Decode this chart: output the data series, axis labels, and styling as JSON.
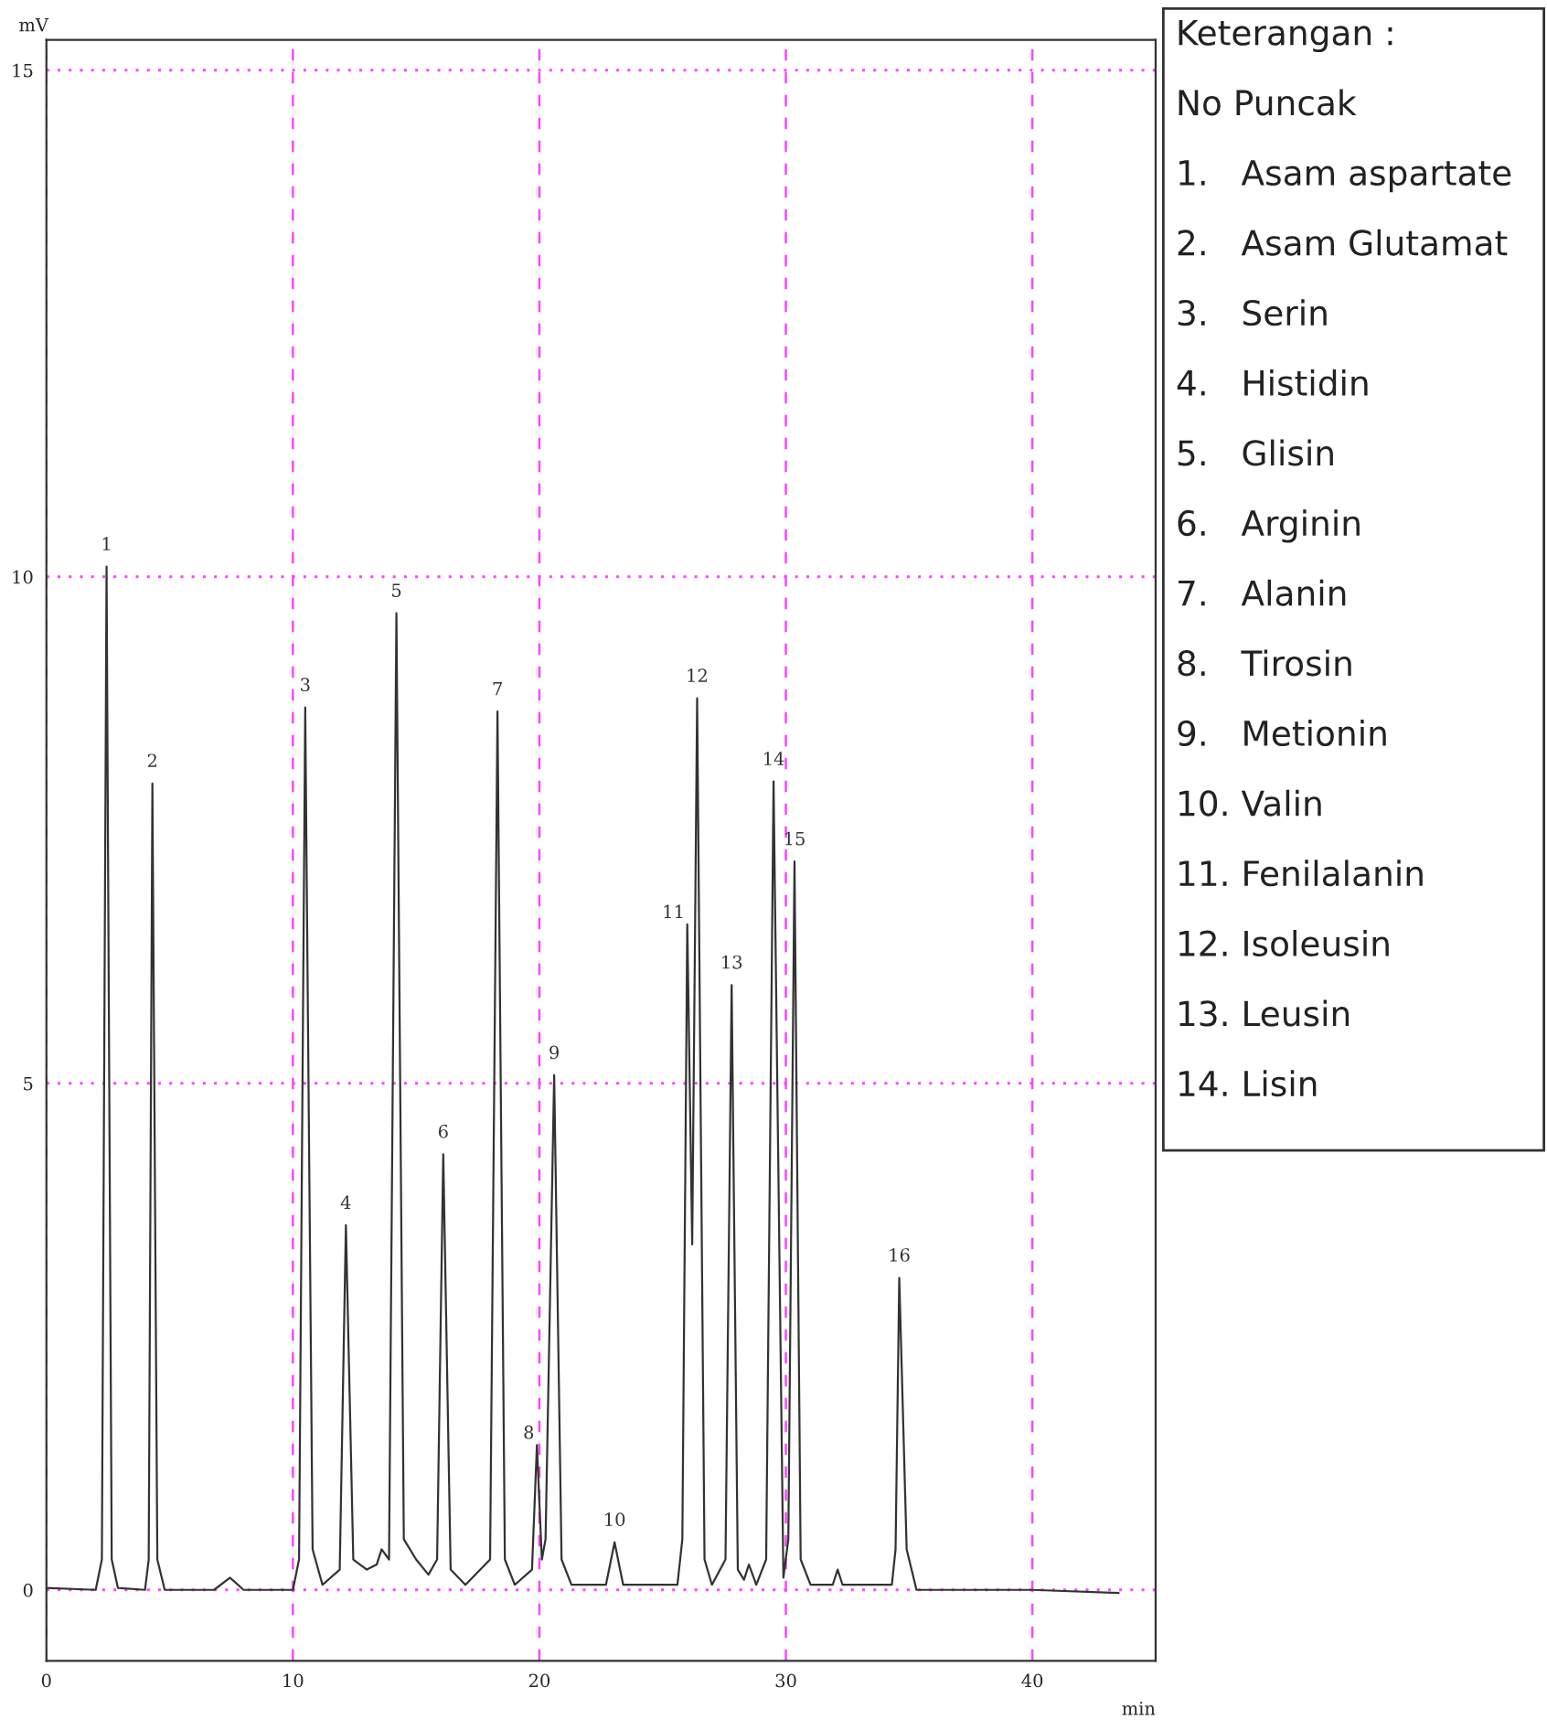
{
  "chart_data": {
    "type": "line",
    "xlabel": "min",
    "ylabel": "mV",
    "xlim": [
      0,
      45
    ],
    "ylim": [
      -0.7,
      15.3
    ],
    "xticks": [
      0,
      10,
      20,
      30,
      40
    ],
    "yticks": [
      0,
      5,
      10,
      15
    ],
    "grid": true,
    "marker": "none",
    "line_style": "solid",
    "series": [
      {
        "color": "#333333",
        "x": [
          0,
          2.0,
          2.25,
          2.44,
          2.65,
          2.9,
          4.0,
          4.15,
          4.3,
          4.5,
          4.8,
          6.8,
          7.45,
          8.0,
          10.0,
          10.25,
          10.5,
          10.8,
          11.2,
          11.9,
          12.15,
          12.45,
          13.0,
          13.4,
          13.6,
          13.9,
          14.2,
          14.5,
          15.0,
          15.5,
          15.85,
          16.1,
          16.4,
          17.0,
          18.0,
          18.3,
          18.6,
          19.0,
          19.7,
          19.9,
          20.1,
          20.25,
          20.6,
          20.9,
          21.3,
          22.7,
          23.05,
          23.4,
          25.6,
          25.8,
          26.0,
          26.2,
          26.4,
          26.7,
          27.0,
          27.55,
          27.8,
          28.05,
          28.3,
          28.5,
          28.8,
          29.2,
          29.5,
          29.9,
          30.1,
          30.35,
          30.6,
          31.0,
          31.9,
          32.1,
          32.3,
          34.3,
          34.45,
          34.6,
          34.9,
          35.3,
          40.0,
          43.5
        ],
        "values": [
          0.02,
          0.0,
          0.3,
          10.1,
          0.3,
          0.02,
          0.0,
          0.3,
          7.96,
          0.3,
          0.0,
          0.0,
          0.12,
          0.0,
          0.0,
          0.3,
          8.71,
          0.4,
          0.05,
          0.2,
          3.6,
          0.3,
          0.2,
          0.25,
          0.4,
          0.3,
          9.64,
          0.5,
          0.3,
          0.15,
          0.3,
          4.3,
          0.2,
          0.05,
          0.3,
          8.67,
          0.3,
          0.05,
          0.2,
          1.43,
          0.3,
          0.5,
          5.08,
          0.3,
          0.05,
          0.05,
          0.47,
          0.05,
          0.05,
          0.5,
          6.57,
          3.41,
          8.8,
          0.3,
          0.05,
          0.3,
          5.97,
          0.2,
          0.1,
          0.25,
          0.05,
          0.3,
          7.98,
          0.12,
          0.5,
          7.19,
          0.3,
          0.05,
          0.05,
          0.2,
          0.05,
          0.05,
          0.4,
          3.08,
          0.4,
          0.0,
          0.0,
          -0.03
        ]
      }
    ],
    "annotations": [
      {
        "text": "1",
        "x": 2.44,
        "y": 10.1
      },
      {
        "text": "2",
        "x": 4.3,
        "y": 7.96
      },
      {
        "text": "3",
        "x": 10.5,
        "y": 8.71
      },
      {
        "text": "4",
        "x": 12.15,
        "y": 3.6
      },
      {
        "text": "5",
        "x": 14.2,
        "y": 9.64
      },
      {
        "text": "6",
        "x": 16.1,
        "y": 4.3
      },
      {
        "text": "7",
        "x": 18.3,
        "y": 8.67
      },
      {
        "text": "8",
        "x": 19.9,
        "y": 1.43
      },
      {
        "text": "9",
        "x": 20.6,
        "y": 5.08
      },
      {
        "text": "10",
        "x": 23.05,
        "y": 0.47
      },
      {
        "text": "11",
        "x": 26.0,
        "y": 6.57
      },
      {
        "text": "12",
        "x": 26.4,
        "y": 8.8
      },
      {
        "text": "13",
        "x": 27.8,
        "y": 5.97
      },
      {
        "text": "14",
        "x": 29.5,
        "y": 7.98
      },
      {
        "text": "15",
        "x": 30.35,
        "y": 7.19
      },
      {
        "text": "16",
        "x": 34.6,
        "y": 3.08
      },
      "Keterangan :",
      "No Puncak",
      "1.   Asam aspartate",
      "2.   Asam Glutamat",
      "3.   Serin",
      "4.   Histidin",
      "5.   Glisin",
      "6.   Arginin",
      "7.   Alanin",
      "8.   Tirosin",
      "9.   Metionin",
      "10. Valin",
      "11. Fenilalanin",
      "12. Isoleusin",
      "13. Leusin",
      "14. Lisin"
    ]
  }
}
